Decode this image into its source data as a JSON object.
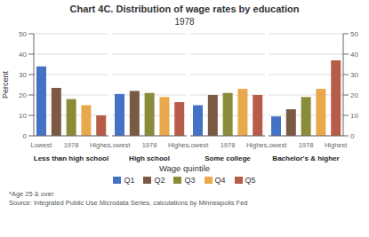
{
  "chart_data": {
    "type": "bar",
    "title": "Chart 4C. Distribution of wage rates by education",
    "subtitle": "1978",
    "xlabel": "Wage quintile",
    "ylabel": "Percent",
    "categories": [
      "Q1",
      "Q2",
      "Q3",
      "Q4",
      "Q5"
    ],
    "colors": [
      "#4472C4",
      "#7B5A44",
      "#8B8C3A",
      "#E9A84C",
      "#B85C4A"
    ],
    "xticks": [
      {
        "value": "Q1",
        "label": "Lowest"
      },
      {
        "value": "Q3",
        "label": "1978"
      },
      {
        "value": "Q5",
        "label": "Highest"
      }
    ],
    "ylim": [
      0,
      50
    ],
    "yticks": [
      0,
      10,
      20,
      30,
      40,
      50
    ],
    "y2lim": [
      0,
      50
    ],
    "y2ticks": [
      0,
      10,
      20,
      30,
      40,
      50
    ],
    "grid": true,
    "legend": "bottom",
    "panels": [
      {
        "title": "Less than high school",
        "values": [
          34,
          23.5,
          18,
          15,
          10
        ]
      },
      {
        "title": "High school",
        "values": [
          20.5,
          22,
          21,
          19,
          16.5
        ]
      },
      {
        "title": "Some college",
        "values": [
          15,
          20,
          21,
          23,
          20
        ]
      },
      {
        "title": "Bachelor's & higher",
        "values": [
          9.5,
          13,
          19,
          23,
          37
        ]
      }
    ],
    "annotations": [
      "*Age 25 & over",
      "Source: Integrated Public Use Microdata Series, calculations by Minneapolis Fed"
    ]
  }
}
